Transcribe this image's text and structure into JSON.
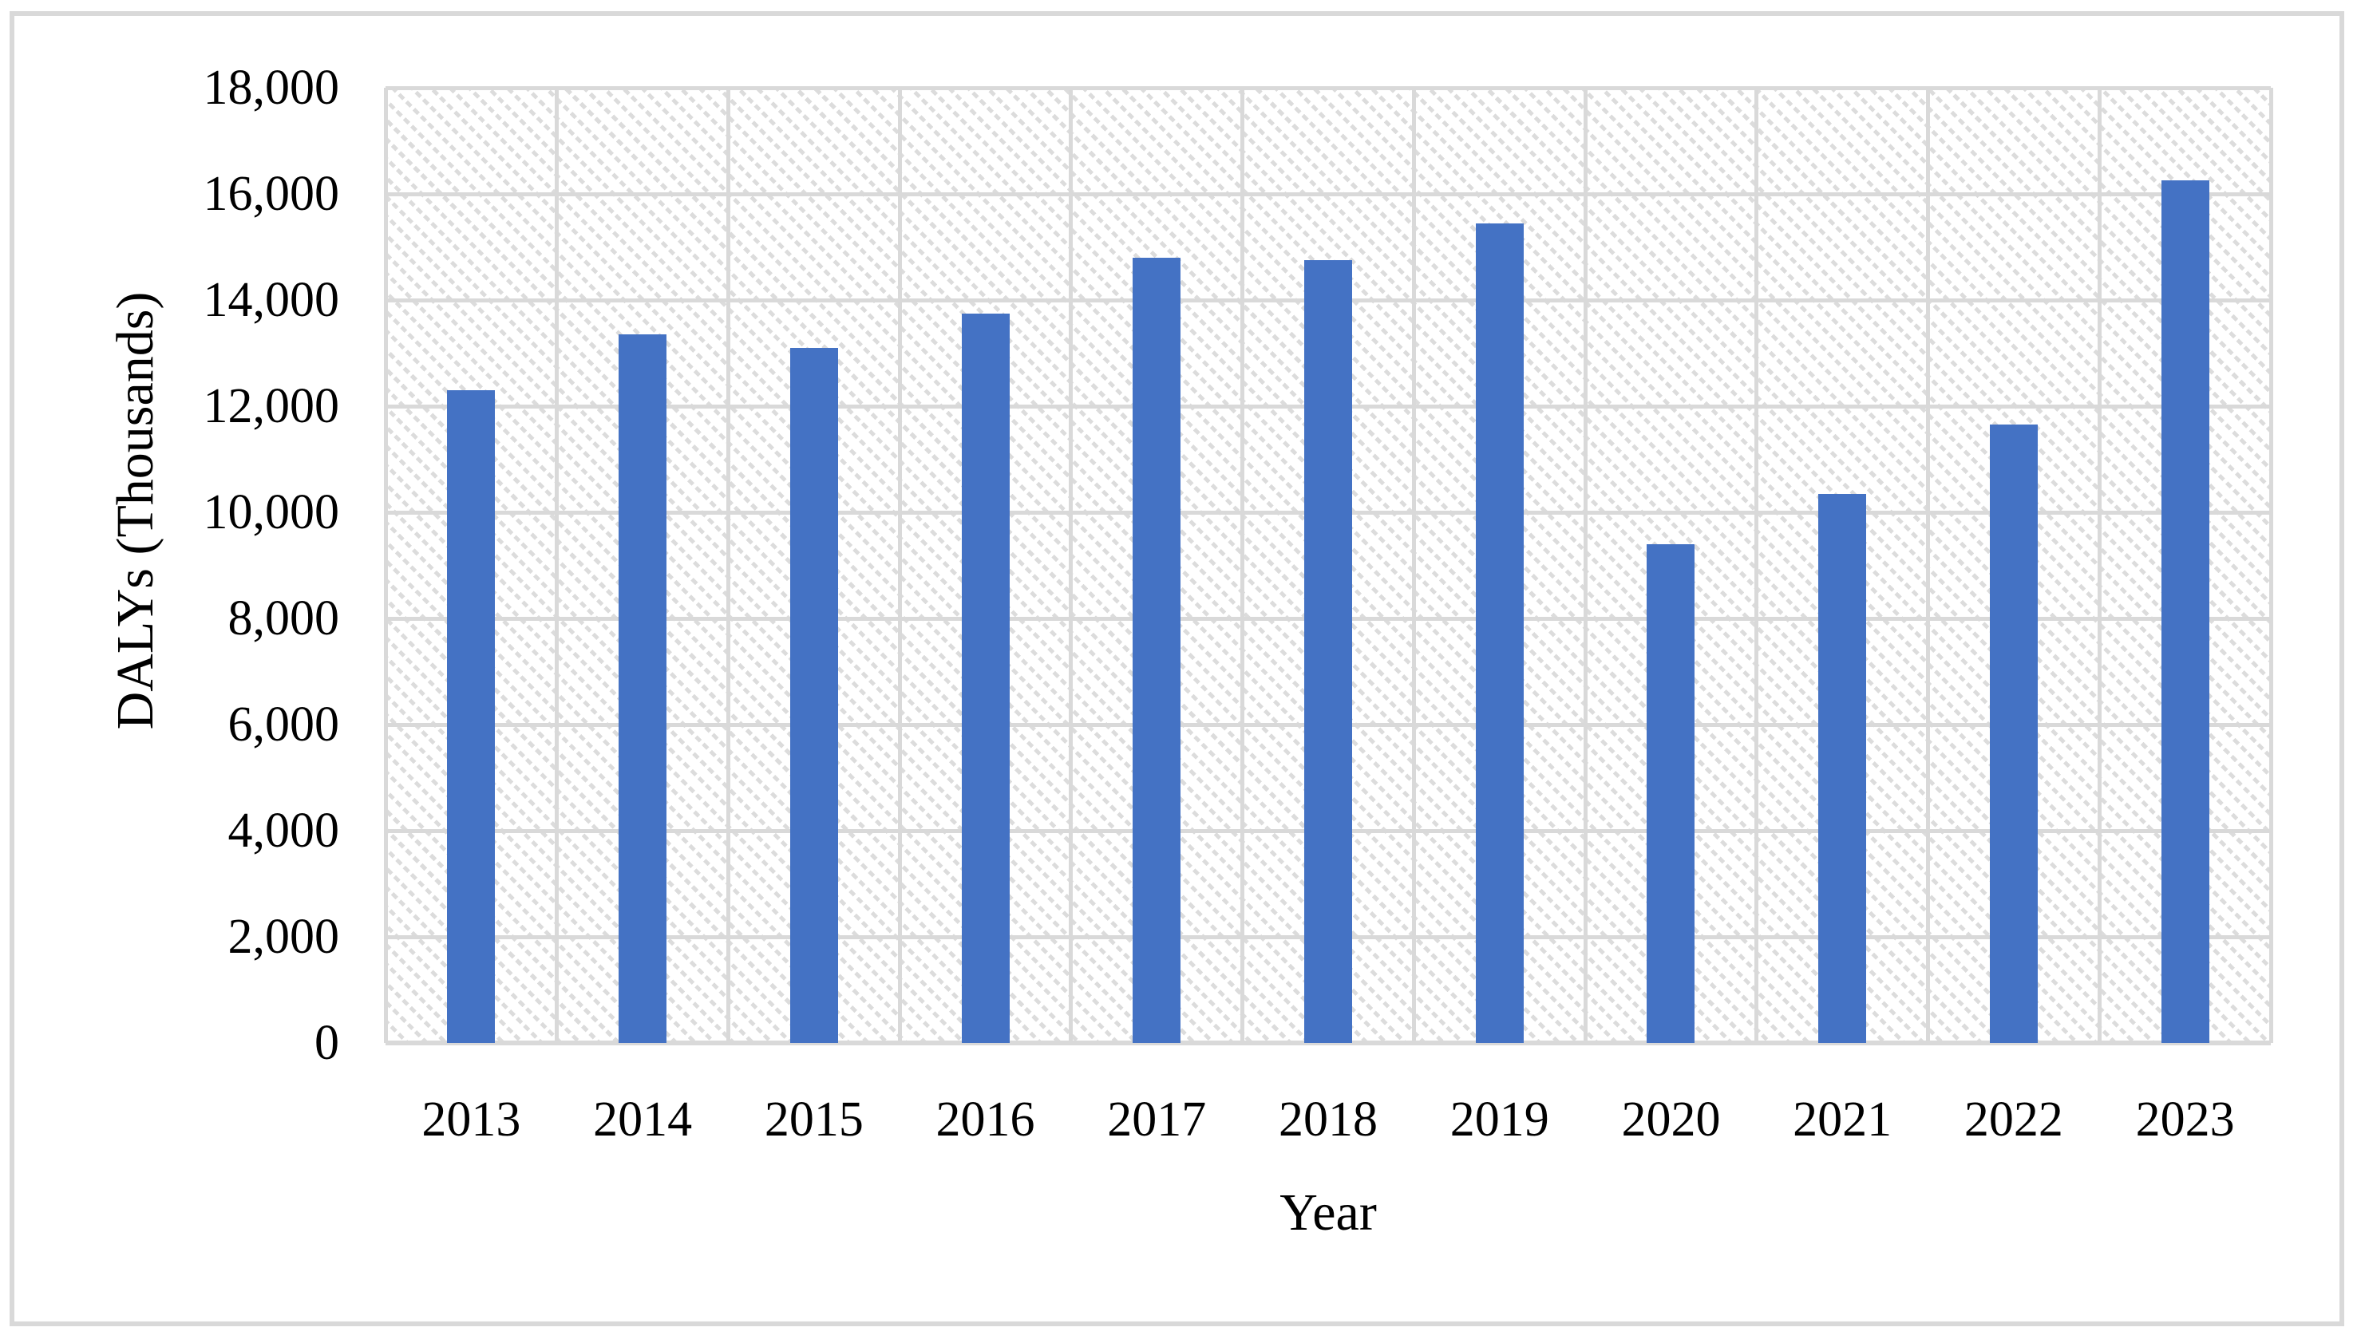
{
  "figure": {
    "background": "#ffffff",
    "border_color": "#d9d9d9",
    "plot_hatch_color": "#dcdcdc",
    "gridline_color": "#d9d9d9",
    "text_color": "#000000"
  },
  "chart_data": {
    "type": "bar",
    "title": "",
    "categories": [
      "2013",
      "2014",
      "2015",
      "2016",
      "2017",
      "2018",
      "2019",
      "2020",
      "2021",
      "2022",
      "2023"
    ],
    "series": [
      {
        "name": "DALYs",
        "values": [
          12300,
          13350,
          13100,
          13750,
          14800,
          14750,
          15450,
          9400,
          10350,
          11650,
          16250
        ]
      }
    ],
    "xlabel": "Year",
    "ylabel": "DALYs (Thousands)",
    "ylim": [
      0,
      18000
    ],
    "ytick_step": 2000,
    "ytick_labels": [
      "0",
      "2,000",
      "4,000",
      "6,000",
      "8,000",
      "10,000",
      "12,000",
      "14,000",
      "16,000",
      "18,000"
    ],
    "bar_color": "#4472C4",
    "grid": "major horizontal and vertical gridlines shown",
    "plot_area_fill": "light diagonal hatch pattern",
    "legend": "none"
  }
}
